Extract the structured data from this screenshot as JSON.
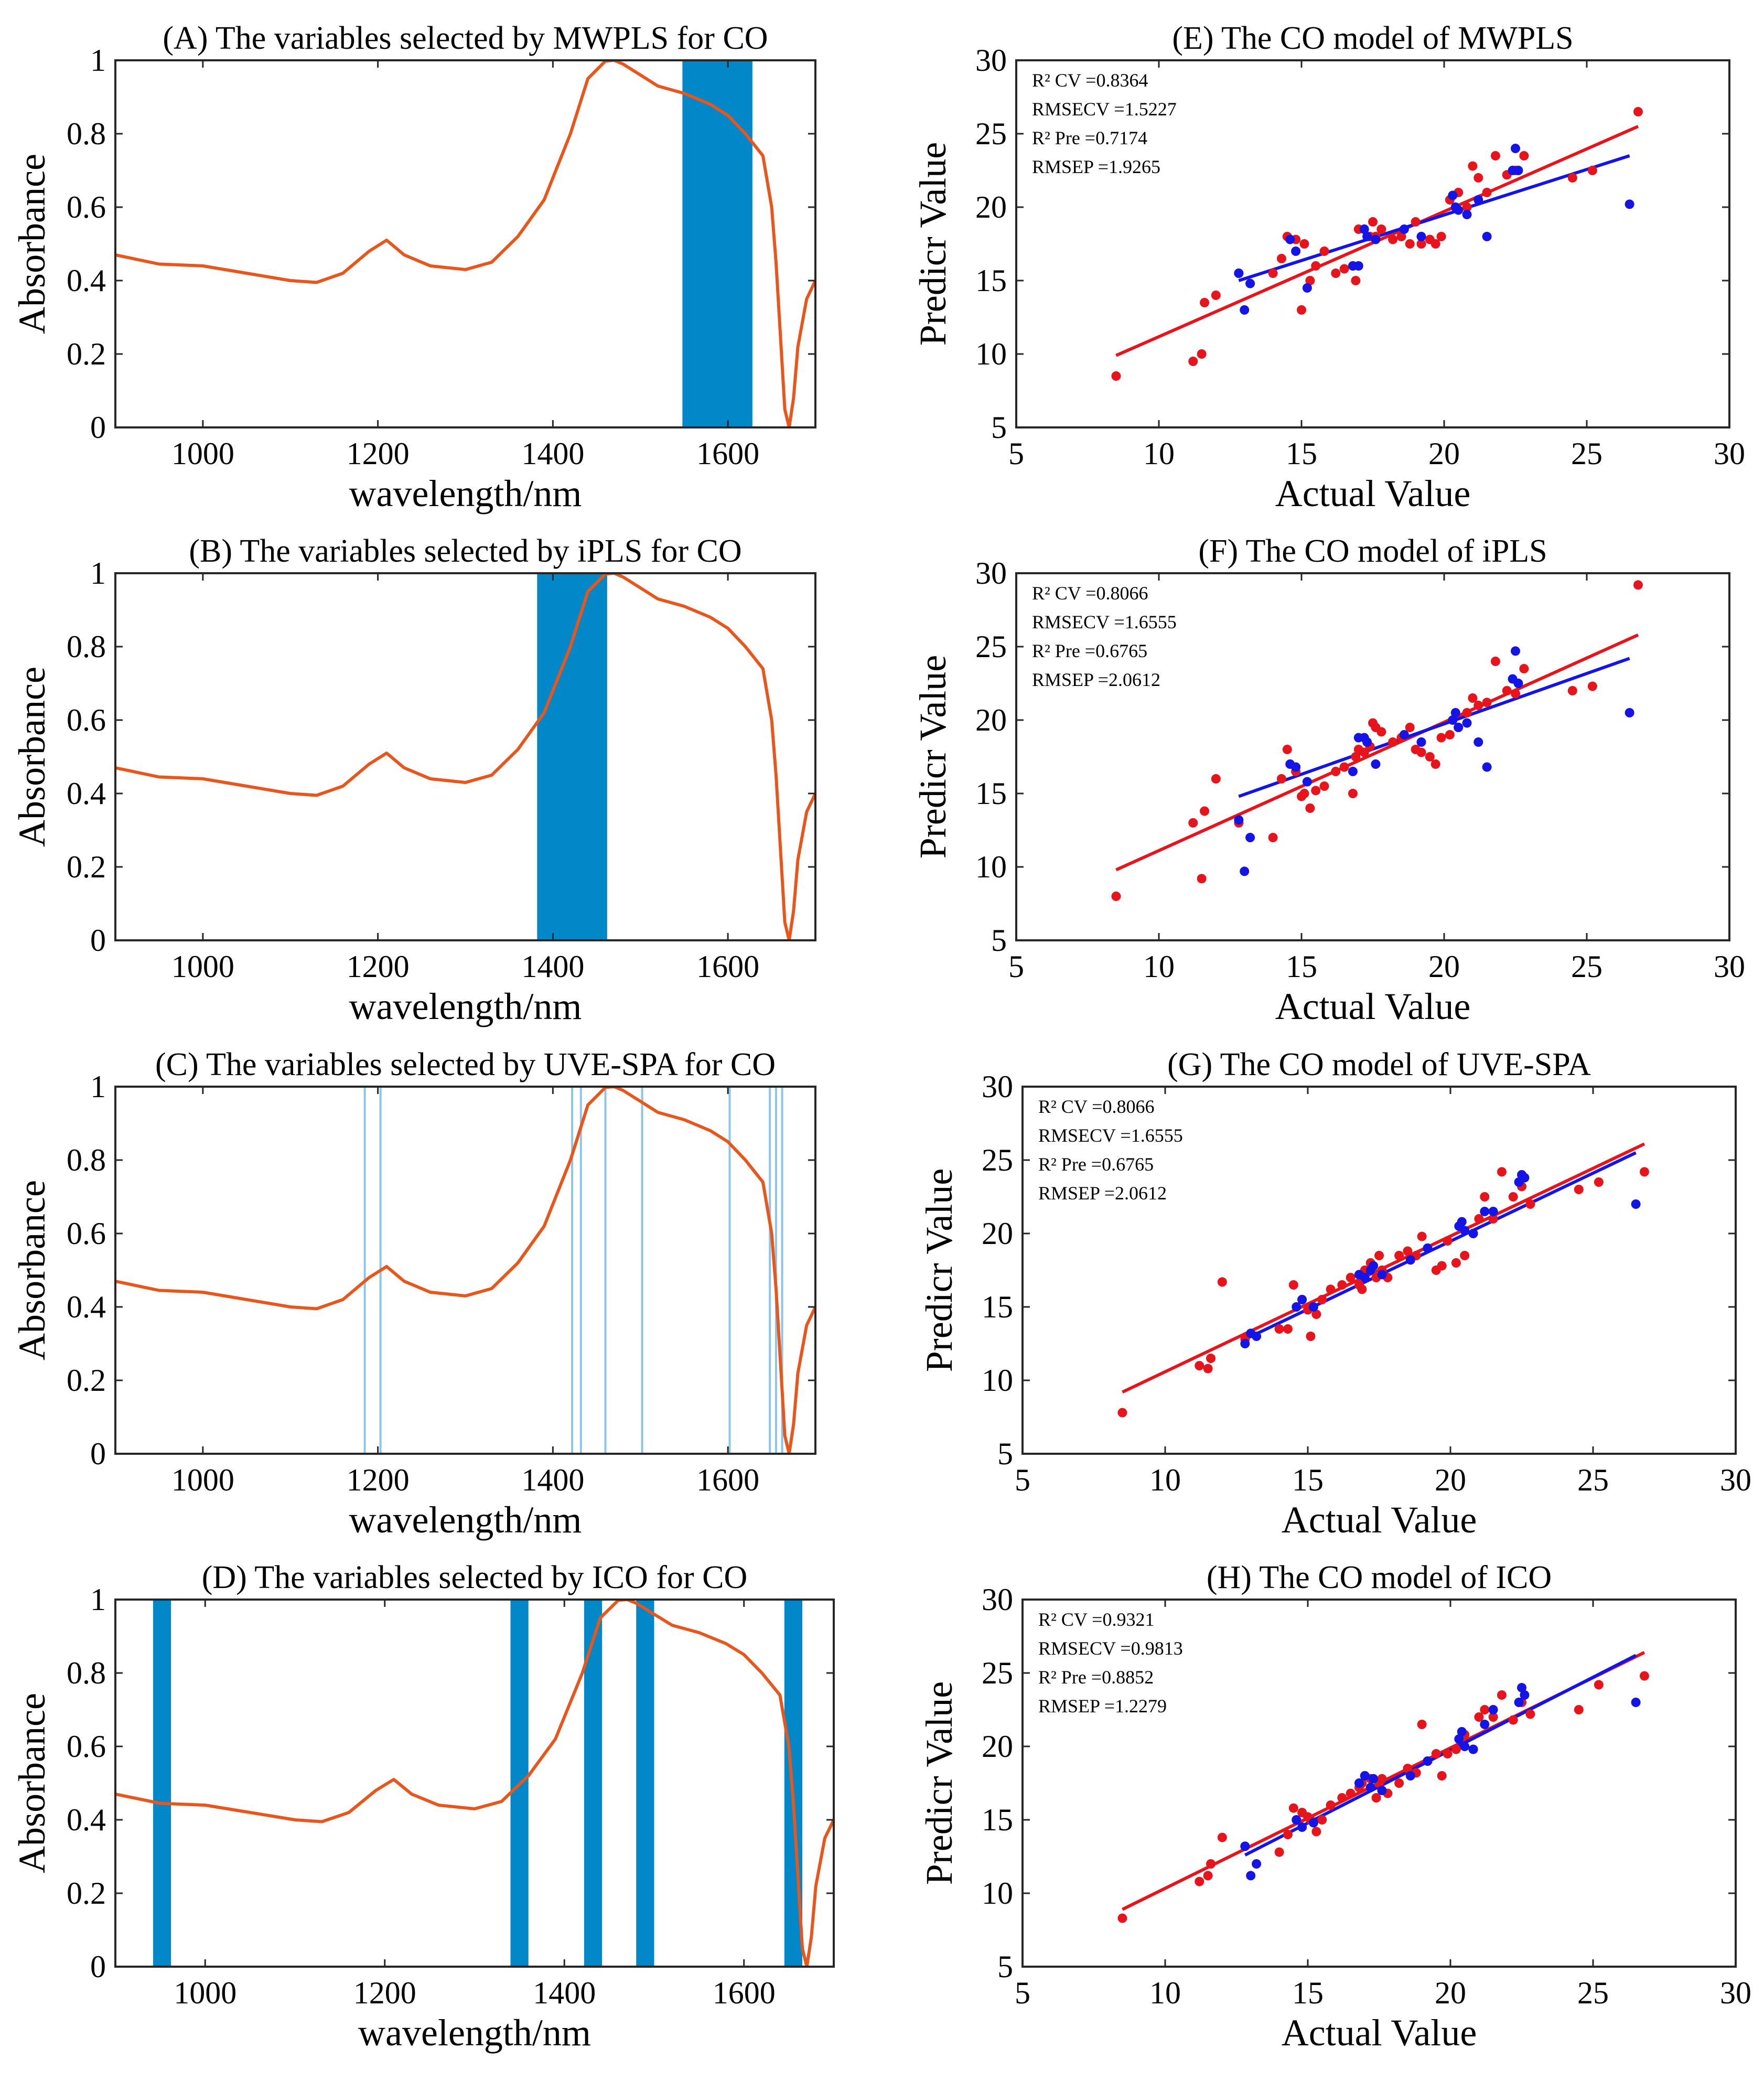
{
  "colors": {
    "spectrum": "#E8561B",
    "selection": "#0288C8",
    "selection_line": "#8CC4EA",
    "calibration": "#E8141C",
    "prediction": "#1414E6"
  },
  "spectra_x": [
    900,
    950,
    1000,
    1050,
    1100,
    1130,
    1160,
    1190,
    1210,
    1230,
    1260,
    1300,
    1330,
    1360,
    1390,
    1420,
    1440,
    1460,
    1470,
    1480,
    1500,
    1520,
    1550,
    1580,
    1600,
    1620,
    1640,
    1650,
    1655,
    1660,
    1665,
    1670,
    1675,
    1680,
    1690,
    1700
  ],
  "spectra_y": [
    0.47,
    0.445,
    0.44,
    0.42,
    0.4,
    0.395,
    0.42,
    0.48,
    0.51,
    0.47,
    0.44,
    0.43,
    0.45,
    0.52,
    0.62,
    0.8,
    0.95,
    0.998,
    1.0,
    0.99,
    0.96,
    0.93,
    0.91,
    0.88,
    0.85,
    0.8,
    0.74,
    0.6,
    0.45,
    0.25,
    0.05,
    0.0,
    0.08,
    0.22,
    0.35,
    0.4
  ],
  "calibration_actual": [
    8.5,
    11.2,
    11.5,
    11.6,
    12.0,
    12.8,
    14.0,
    14.3,
    14.5,
    14.8,
    15.0,
    15.1,
    15.3,
    15.5,
    15.8,
    16.2,
    16.5,
    16.8,
    16.9,
    17.0,
    17.2,
    17.4,
    17.5,
    17.6,
    17.8,
    18.2,
    18.5,
    18.8,
    19.0,
    19.2,
    19.5,
    19.7,
    19.9,
    20.2,
    20.5,
    20.8,
    21.0,
    21.2,
    21.5,
    21.8,
    22.2,
    22.5,
    22.8,
    24.5,
    25.2,
    26.8
  ],
  "prediction_actual": [
    12.8,
    13.0,
    13.2,
    14.6,
    14.8,
    15.2,
    16.8,
    17.0,
    17.2,
    17.3,
    17.6,
    18.6,
    19.2,
    20.3,
    20.4,
    20.5,
    20.8,
    21.2,
    21.5,
    22.4,
    22.5,
    22.6,
    26.5
  ],
  "panels": [
    {
      "id": "A",
      "title": "(A) The variables selected by MWPLS for CO",
      "xlabel": "wavelength/nm",
      "ylabel": "Absorbance",
      "xlim": [
        900,
        1700
      ],
      "ylim": [
        0,
        1
      ],
      "xticks": [
        "1000",
        "1200",
        "1400",
        "1600"
      ],
      "yticks": [
        "0",
        "0.2",
        "0.4",
        "0.6",
        "0.8",
        "1"
      ],
      "selected_bands": [
        [
          1548,
          1628
        ]
      ],
      "selected_lines": []
    },
    {
      "id": "B",
      "title": "(B) The variables selected by iPLS for CO",
      "xlabel": "wavelength/nm",
      "ylabel": "Absorbance",
      "xlim": [
        900,
        1700
      ],
      "ylim": [
        0,
        1
      ],
      "xticks": [
        "1000",
        "1200",
        "1400",
        "1600"
      ],
      "yticks": [
        "0",
        "0.2",
        "0.4",
        "0.6",
        "0.8",
        "1"
      ],
      "selected_bands": [
        [
          1382,
          1462
        ]
      ],
      "selected_lines": []
    },
    {
      "id": "C",
      "title": "(C) The variables selected by UVE-SPA for CO",
      "xlabel": "wavelength/nm",
      "ylabel": "Absorbance",
      "xlim": [
        900,
        1700
      ],
      "ylim": [
        0,
        1
      ],
      "xticks": [
        "1000",
        "1200",
        "1400",
        "1600"
      ],
      "yticks": [
        "0",
        "0.2",
        "0.4",
        "0.6",
        "0.8",
        "1"
      ],
      "selected_bands": [],
      "selected_lines": [
        1185,
        1203,
        1422,
        1432,
        1460,
        1502,
        1602,
        1648,
        1655,
        1662
      ]
    },
    {
      "id": "D",
      "title": "(D) The variables selected by ICO for CO",
      "xlabel": "wavelength/nm",
      "ylabel": "Absorbance",
      "xlim": [
        900,
        1700
      ],
      "ylim": [
        0,
        1
      ],
      "xticks": [
        "1000",
        "1200",
        "1400",
        "1600"
      ],
      "yticks": [
        "0",
        "0.2",
        "0.4",
        "0.6",
        "0.8",
        "1"
      ],
      "selected_bands": [
        [
          942,
          962
        ],
        [
          1340,
          1360
        ],
        [
          1422,
          1442
        ],
        [
          1480,
          1500
        ],
        [
          1645,
          1665
        ]
      ],
      "selected_lines": []
    },
    {
      "id": "E",
      "title": "(E) The CO model of MWPLS",
      "xlabel": "Actual Value",
      "ylabel": "Predicr Value",
      "xlim": [
        5,
        30
      ],
      "ylim": [
        5,
        30
      ],
      "xticks": [
        "5",
        "10",
        "15",
        "20",
        "25",
        "30"
      ],
      "yticks": [
        "5",
        "10",
        "15",
        "20",
        "25",
        "30"
      ],
      "stats": [
        "R² CV =0.8364",
        "RMSECV =1.5227",
        "R² Pre =0.7174",
        "RMSEP =1.9265"
      ],
      "calibration_predicted": [
        8.5,
        9.5,
        10.0,
        13.5,
        14.0,
        15.5,
        15.5,
        16.5,
        18.0,
        17.8,
        13.0,
        17.5,
        15.0,
        16.0,
        17.0,
        15.5,
        15.8,
        16.0,
        15.0,
        18.5,
        18.5,
        18.0,
        19.0,
        18.0,
        18.5,
        17.8,
        18.0,
        17.5,
        19.0,
        17.5,
        17.8,
        17.5,
        18.0,
        20.5,
        21.0,
        20.0,
        22.8,
        22.0,
        21.0,
        23.5,
        22.2,
        22.5,
        23.5,
        22.0,
        22.5,
        26.5
      ],
      "prediction_predicted": [
        15.5,
        13.0,
        14.8,
        17.8,
        17.0,
        14.5,
        16.0,
        16.0,
        18.5,
        18.0,
        17.8,
        18.5,
        18.0,
        20.8,
        20.0,
        19.8,
        19.5,
        20.5,
        18.0,
        22.5,
        24.0,
        22.5,
        20.2
      ],
      "fit_calibration": [
        [
          8.5,
          9.9
        ],
        [
          26.8,
          25.5
        ]
      ],
      "fit_prediction": [
        [
          12.8,
          15.0
        ],
        [
          26.5,
          23.5
        ]
      ]
    },
    {
      "id": "F",
      "title": "(F) The CO model of iPLS",
      "xlabel": "Actual Value",
      "ylabel": "Predicr Value",
      "xlim": [
        5,
        30
      ],
      "ylim": [
        5,
        30
      ],
      "xticks": [
        "5",
        "10",
        "15",
        "20",
        "25",
        "30"
      ],
      "yticks": [
        "5",
        "10",
        "15",
        "20",
        "25",
        "30"
      ],
      "stats": [
        "R² CV =0.8066",
        "RMSECV =1.6555",
        "R² Pre =0.6765",
        "RMSEP =2.0612"
      ],
      "calibration_predicted": [
        8.0,
        13.0,
        9.2,
        13.8,
        16.0,
        13.0,
        12.0,
        16.0,
        18.0,
        16.5,
        14.8,
        15.0,
        14.0,
        15.2,
        15.5,
        16.5,
        16.8,
        15.0,
        17.5,
        18.0,
        17.8,
        18.2,
        19.8,
        19.5,
        19.2,
        18.5,
        18.8,
        19.5,
        18.0,
        17.8,
        17.5,
        17.0,
        18.8,
        19.0,
        19.5,
        20.5,
        21.5,
        21.0,
        21.2,
        24.0,
        22.0,
        21.8,
        23.5,
        22.0,
        22.3,
        29.2
      ],
      "prediction_predicted": [
        13.2,
        9.7,
        12.0,
        17.0,
        16.8,
        15.8,
        16.5,
        18.8,
        18.8,
        18.5,
        17.0,
        19.0,
        18.5,
        20.0,
        20.5,
        19.5,
        19.8,
        18.5,
        16.8,
        22.8,
        24.7,
        22.5,
        20.5
      ],
      "fit_calibration": [
        [
          8.5,
          9.8
        ],
        [
          26.8,
          25.8
        ]
      ],
      "fit_prediction": [
        [
          12.8,
          14.8
        ],
        [
          26.5,
          24.2
        ]
      ]
    },
    {
      "id": "G",
      "title": "(G) The CO model of UVE-SPA",
      "xlabel": "Actual Value",
      "ylabel": "Predicr Value",
      "xlim": [
        5,
        30
      ],
      "ylim": [
        5,
        30
      ],
      "xticks": [
        "5",
        "10",
        "15",
        "20",
        "25",
        "30"
      ],
      "yticks": [
        "5",
        "10",
        "15",
        "20",
        "25",
        "30"
      ],
      "stats": [
        "R² CV =0.8066",
        "RMSECV =1.6555",
        "R² Pre =0.6765",
        "RMSEP =2.0612"
      ],
      "calibration_predicted": [
        7.8,
        11.0,
        10.8,
        11.5,
        16.7,
        12.8,
        13.5,
        13.5,
        16.5,
        15.5,
        14.8,
        13.0,
        14.5,
        15.5,
        16.2,
        16.5,
        17.0,
        16.5,
        16.2,
        17.5,
        18.0,
        17.0,
        18.5,
        17.5,
        17.0,
        18.5,
        18.8,
        18.5,
        19.8,
        19.0,
        17.5,
        17.8,
        19.5,
        18.0,
        18.5,
        20.0,
        21.0,
        22.5,
        21.0,
        24.2,
        22.5,
        23.2,
        22.0,
        23.0,
        23.5,
        24.2
      ],
      "prediction_predicted": [
        12.5,
        13.2,
        13.0,
        15.0,
        15.5,
        15.0,
        17.2,
        17.0,
        17.5,
        17.8,
        17.2,
        18.2,
        19.0,
        20.5,
        20.8,
        20.2,
        20.0,
        21.5,
        21.5,
        23.5,
        24.0,
        23.8,
        22.0
      ],
      "fit_calibration": [
        [
          8.5,
          9.2
        ],
        [
          26.8,
          26.1
        ]
      ],
      "fit_prediction": [
        [
          12.8,
          12.8
        ],
        [
          26.5,
          25.5
        ]
      ]
    },
    {
      "id": "H",
      "title": "(H) The CO model of ICO",
      "xlabel": "Actual Value",
      "ylabel": "Predicr Value",
      "xlim": [
        5,
        30
      ],
      "ylim": [
        5,
        30
      ],
      "xticks": [
        "5",
        "10",
        "15",
        "20",
        "25",
        "30"
      ],
      "yticks": [
        "5",
        "10",
        "15",
        "20",
        "25",
        "30"
      ],
      "stats": [
        "R² CV =0.9321",
        "RMSECV =0.9813",
        "R² Pre =0.8852",
        "RMSEP =1.2279"
      ],
      "calibration_predicted": [
        8.3,
        10.8,
        11.2,
        12.0,
        13.8,
        13.2,
        12.8,
        14.0,
        15.8,
        15.5,
        15.2,
        15.0,
        14.2,
        15.0,
        16.0,
        16.5,
        16.8,
        17.2,
        17.5,
        18.0,
        17.8,
        16.5,
        17.5,
        17.8,
        16.8,
        17.5,
        18.5,
        18.2,
        21.5,
        19.0,
        19.5,
        18.0,
        19.5,
        19.8,
        20.8,
        19.8,
        22.0,
        22.5,
        22.0,
        23.5,
        21.8,
        23.0,
        22.2,
        22.5,
        24.2,
        24.8
      ],
      "prediction_predicted": [
        13.2,
        11.2,
        12.0,
        15.0,
        14.5,
        14.8,
        17.5,
        18.0,
        17.2,
        17.8,
        17.0,
        18.0,
        19.0,
        20.5,
        21.0,
        20.0,
        19.8,
        21.5,
        22.5,
        23.0,
        24.0,
        23.5,
        23.0
      ],
      "fit_calibration": [
        [
          8.5,
          8.9
        ],
        [
          26.8,
          26.4
        ]
      ],
      "fit_prediction": [
        [
          12.8,
          12.6
        ],
        [
          26.5,
          26.2
        ]
      ]
    }
  ]
}
